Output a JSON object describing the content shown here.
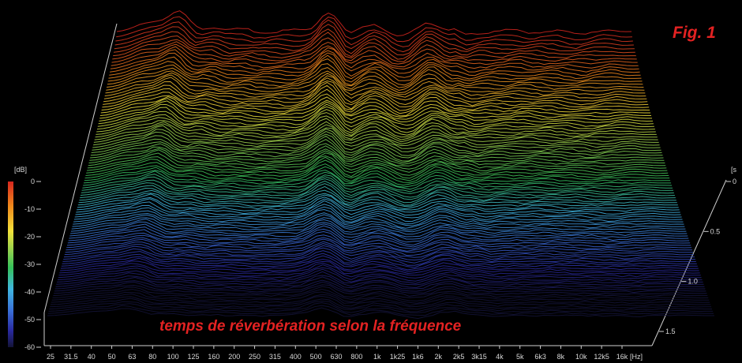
{
  "chart_data": {
    "type": "waterfall-3d",
    "figure_label": "Fig. 1",
    "caption": "temps de réverbération selon la fréquence",
    "z_axis": {
      "unit_label": "[dB]",
      "ticks": [
        "0",
        "-10",
        "-20",
        "-30",
        "-40",
        "-50",
        "-60"
      ],
      "range": [
        -60,
        0
      ]
    },
    "x_axis": {
      "unit_label": "[Hz]",
      "scale": "log",
      "ticks": [
        "25",
        "31.5",
        "40",
        "50",
        "63",
        "80",
        "100",
        "125",
        "160",
        "200",
        "250",
        "315",
        "400",
        "500",
        "630",
        "800",
        "1k",
        "1k25",
        "1k6",
        "2k",
        "2k5",
        "3k15",
        "4k",
        "5k",
        "6k3",
        "8k",
        "10k",
        "12k5",
        "16k"
      ]
    },
    "y_axis": {
      "unit_label": "[s",
      "ticks": [
        "0",
        "0.5",
        "1.0",
        "1.5"
      ],
      "range": [
        0,
        1.5
      ]
    },
    "colormap": [
      "#d7261e",
      "#f08a1c",
      "#f2e23a",
      "#8fd14f",
      "#35c25a",
      "#3fb6e0",
      "#3a6fd8",
      "#2a2aa0",
      "#141438"
    ]
  }
}
